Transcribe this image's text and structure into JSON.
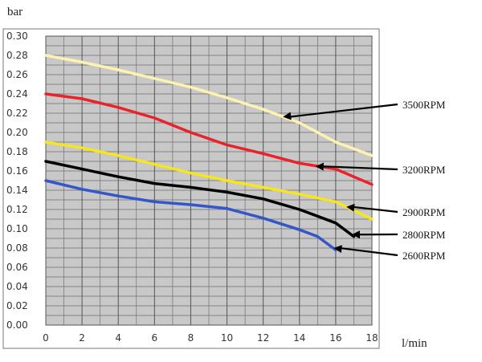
{
  "chart_data": {
    "type": "line",
    "ylabel": "bar",
    "xlabel": "l/min",
    "xlim": [
      0,
      18
    ],
    "ylim": [
      0,
      0.3
    ],
    "x_ticks": [
      0,
      2,
      4,
      6,
      8,
      10,
      12,
      14,
      16,
      18
    ],
    "y_ticks": [
      0.0,
      0.02,
      0.04,
      0.06,
      0.08,
      0.1,
      0.12,
      0.14,
      0.16,
      0.18,
      0.2,
      0.22,
      0.24,
      0.26,
      0.28,
      0.3
    ],
    "x_tick_labels": [
      "0",
      "2",
      "4",
      "6",
      "8",
      "10",
      "12",
      "14",
      "16",
      "18"
    ],
    "y_tick_labels": [
      "0.00",
      "0.02",
      "0.04",
      "0.06",
      "0.08",
      "0.10",
      "0.12",
      "0.14",
      "0.16",
      "0.18",
      "0.20",
      "0.22",
      "0.24",
      "0.26",
      "0.28",
      "0.30"
    ],
    "grid": true,
    "plot_background": "#c8c8c8",
    "series": [
      {
        "name": "3500RPM",
        "color": "#fff2b0",
        "x": [
          0,
          2,
          4,
          6,
          8,
          10,
          12,
          14,
          16,
          18
        ],
        "y": [
          0.28,
          0.273,
          0.265,
          0.256,
          0.247,
          0.236,
          0.224,
          0.21,
          0.19,
          0.176
        ]
      },
      {
        "name": "3200RPM",
        "color": "#e8232a",
        "x": [
          0,
          2,
          4,
          6,
          8,
          10,
          12,
          14,
          16,
          18
        ],
        "y": [
          0.24,
          0.235,
          0.226,
          0.215,
          0.2,
          0.187,
          0.178,
          0.168,
          0.162,
          0.146
        ]
      },
      {
        "name": "2900RPM",
        "color": "#f5e61e",
        "x": [
          0,
          2,
          4,
          6,
          8,
          10,
          12,
          14,
          16,
          18
        ],
        "y": [
          0.19,
          0.184,
          0.176,
          0.167,
          0.158,
          0.15,
          0.143,
          0.136,
          0.128,
          0.11
        ]
      },
      {
        "name": "2800RPM",
        "color": "#000000",
        "x": [
          0,
          2,
          4,
          6,
          8,
          10,
          12,
          14,
          16,
          17
        ],
        "y": [
          0.17,
          0.162,
          0.154,
          0.147,
          0.143,
          0.138,
          0.131,
          0.12,
          0.106,
          0.092
        ]
      },
      {
        "name": "2600RPM",
        "color": "#3356c8",
        "x": [
          0,
          2,
          4,
          6,
          8,
          10,
          12,
          14,
          15,
          16
        ],
        "y": [
          0.15,
          0.141,
          0.134,
          0.128,
          0.125,
          0.121,
          0.111,
          0.099,
          0.092,
          0.078
        ]
      }
    ]
  }
}
